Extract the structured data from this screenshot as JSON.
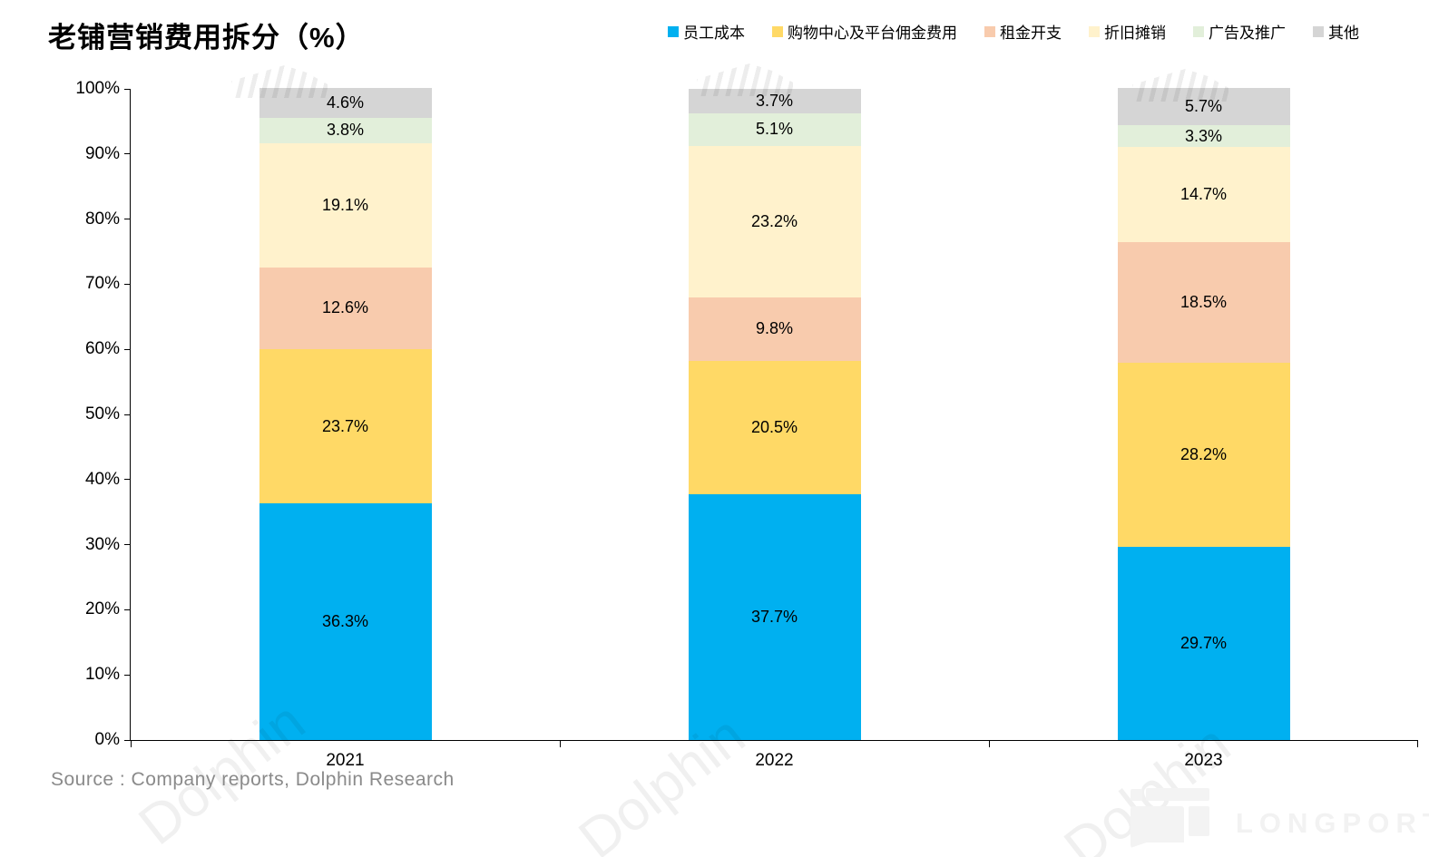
{
  "title": "老铺营销费用拆分（%）",
  "chart_data": {
    "type": "bar",
    "stacked": true,
    "title": "老铺营销费用拆分（%）",
    "categories": [
      "2021",
      "2022",
      "2023"
    ],
    "series": [
      {
        "name": "员工成本",
        "color": "#00B0F0",
        "values": [
          36.3,
          37.7,
          29.7
        ]
      },
      {
        "name": "购物中心及平台佣金费用",
        "color": "#FFD966",
        "values": [
          23.7,
          20.5,
          28.2
        ]
      },
      {
        "name": "租金开支",
        "color": "#F8CBAD",
        "values": [
          12.6,
          9.8,
          18.5
        ]
      },
      {
        "name": "折旧摊销",
        "color": "#FFF2CC",
        "values": [
          19.1,
          23.2,
          14.7
        ]
      },
      {
        "name": "广告及推广",
        "color": "#E2EFDA",
        "values": [
          3.8,
          5.1,
          3.3
        ]
      },
      {
        "name": "其他",
        "color": "#D5D5D5",
        "values": [
          4.6,
          3.7,
          5.7
        ]
      }
    ],
    "ylim": [
      0,
      100
    ],
    "yticks": [
      "0%",
      "10%",
      "20%",
      "30%",
      "40%",
      "50%",
      "60%",
      "70%",
      "80%",
      "90%",
      "100%"
    ],
    "grid": false,
    "legend_position": "top-right",
    "data_label_format": "{value}%"
  },
  "source": "Source : Company reports, Dolphin Research",
  "watermark": {
    "fragment_text": "Dolphin",
    "brand_text": "LONGPORT"
  },
  "colors": {
    "axis": "#000000",
    "source_text": "#8a8a8a",
    "watermark": "#f2f2f2"
  }
}
